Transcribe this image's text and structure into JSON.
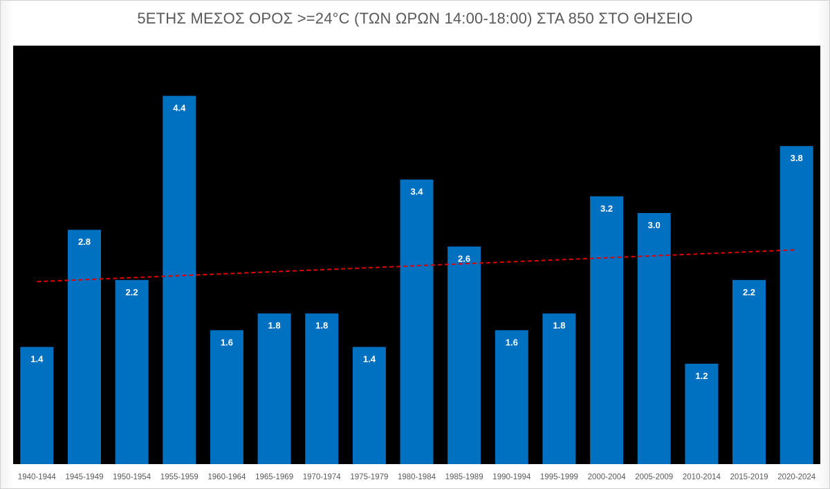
{
  "chart_data": {
    "type": "bar",
    "title": "5ΕΤΗΣ ΜΕΣΟΣ ΟΡΟΣ >=24°C (ΤΩΝ ΩΡΩΝ 14:00-18:00) ΣΤΑ 850 ΣΤΟ ΘΗΣΕΙΟ",
    "categories": [
      "1940-1944",
      "1945-1949",
      "1950-1954",
      "1955-1959",
      "1960-1964",
      "1965-1969",
      "1970-1974",
      "1975-1979",
      "1980-1984",
      "1985-1989",
      "1990-1994",
      "1995-1999",
      "2000-2004",
      "2005-2009",
      "2010-2014",
      "2015-2019",
      "2020-2024"
    ],
    "values": [
      1.4,
      2.8,
      2.2,
      4.4,
      1.6,
      1.8,
      1.8,
      1.4,
      3.4,
      2.6,
      1.6,
      1.8,
      3.2,
      3.0,
      1.2,
      2.2,
      3.8
    ],
    "value_labels": [
      "1.4",
      "2.8",
      "2.2",
      "4.4",
      "1.6",
      "1.8",
      "1.8",
      "1.4",
      "3.4",
      "2.6",
      "1.6",
      "1.8",
      "3.2",
      "3.0",
      "1.2",
      "2.2",
      "3.8"
    ],
    "ylim": [
      0,
      5.0
    ],
    "xlabel": "",
    "ylabel": "",
    "plot_background": "#000000",
    "bar_color": "#0070c0",
    "trendline": {
      "type": "linear",
      "start": 2.18,
      "end": 2.56,
      "color": "#e00000",
      "style": "dashed"
    }
  }
}
